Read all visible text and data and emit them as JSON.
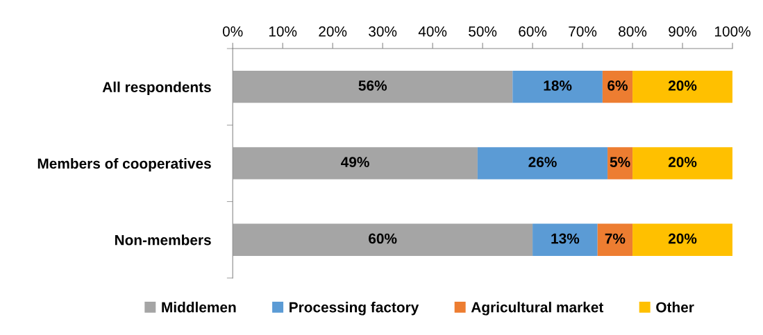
{
  "chart_data": {
    "type": "bar",
    "orientation": "horizontal",
    "stacked": true,
    "categories": [
      "All respondents",
      "Members of cooperatives",
      "Non-members"
    ],
    "series": [
      {
        "name": "Middlemen",
        "color": "#a5a5a5",
        "values": [
          56,
          49,
          60
        ],
        "value_labels": [
          "56%",
          "49%",
          "60%"
        ]
      },
      {
        "name": "Processing factory",
        "color": "#5b9bd5",
        "values": [
          18,
          26,
          13
        ],
        "value_labels": [
          "18%",
          "26%",
          "13%"
        ]
      },
      {
        "name": "Agricultural market",
        "color": "#ed7d31",
        "values": [
          6,
          5,
          7
        ],
        "value_labels": [
          "6%",
          "5%",
          "7%"
        ]
      },
      {
        "name": "Other",
        "color": "#ffc000",
        "values": [
          20,
          20,
          20
        ],
        "value_labels": [
          "20%",
          "20%",
          "20%"
        ]
      }
    ],
    "xlim": [
      0,
      100
    ],
    "xticks": [
      {
        "value": 0,
        "label": "0%"
      },
      {
        "value": 10,
        "label": "10%"
      },
      {
        "value": 20,
        "label": "20%"
      },
      {
        "value": 30,
        "label": "30%"
      },
      {
        "value": 40,
        "label": "40%"
      },
      {
        "value": 50,
        "label": "50%"
      },
      {
        "value": 60,
        "label": "60%"
      },
      {
        "value": 70,
        "label": "70%"
      },
      {
        "value": 80,
        "label": "80%"
      },
      {
        "value": 90,
        "label": "90%"
      },
      {
        "value": 100,
        "label": "100%"
      }
    ],
    "legend": "bottom",
    "grid": false
  }
}
